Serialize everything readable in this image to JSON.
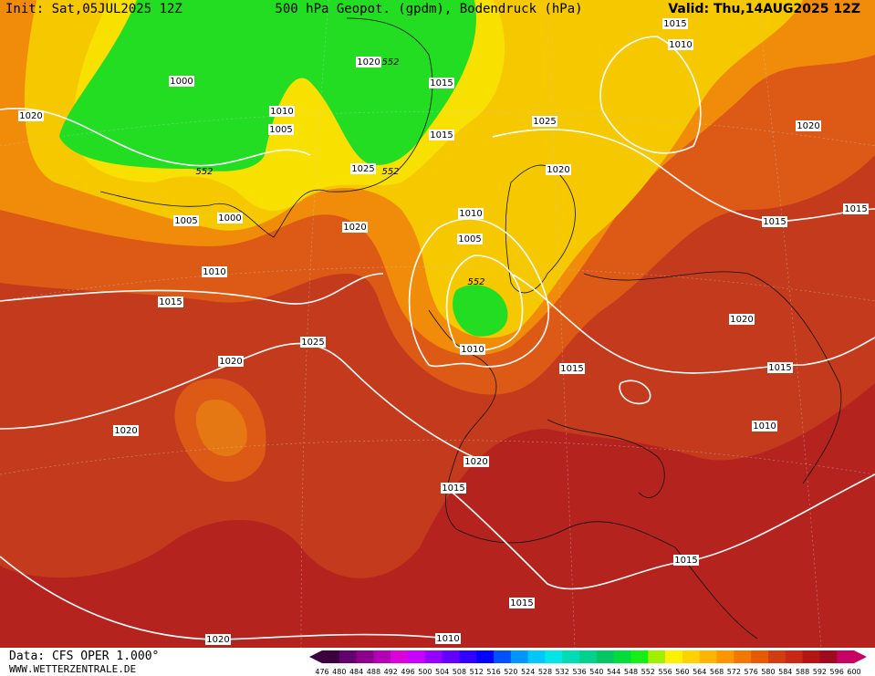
{
  "header": {
    "init": "Init: Sat,05JUL2025 12Z",
    "title": "500 hPa Geopot. (gpdm), Bodendruck (hPa)",
    "valid": "Valid: Thu,14AUG2025 12Z"
  },
  "isobar_labels": [
    1015,
    1010,
    1020,
    1000,
    1020,
    1015,
    1010,
    1005,
    1025,
    1015,
    1020,
    1025,
    1020,
    1005,
    1000,
    1020,
    1010,
    1015,
    1015,
    1005,
    1010,
    1015,
    1020,
    1025,
    1010,
    1020,
    1015,
    1015,
    1010,
    1020,
    1020,
    1015,
    1015,
    1015,
    1020,
    1010
  ],
  "geopotential_labels": [
    552,
    552,
    552,
    552
  ],
  "colorbar": {
    "labels": [
      476,
      480,
      484,
      488,
      492,
      496,
      500,
      504,
      508,
      512,
      516,
      520,
      524,
      528,
      532,
      536,
      540,
      544,
      548,
      552,
      556,
      560,
      564,
      568,
      572,
      576,
      580,
      584,
      588,
      592,
      596,
      600
    ],
    "colors": [
      "#3c003c",
      "#64006e",
      "#8c008c",
      "#b400b4",
      "#dc00dc",
      "#c800ff",
      "#9600ff",
      "#6400ff",
      "#3200ff",
      "#0000ff",
      "#0050ff",
      "#0096ff",
      "#00c8ff",
      "#00e6e6",
      "#00dcb4",
      "#00d28c",
      "#00c864",
      "#00dc3c",
      "#14f014",
      "#a0f000",
      "#fff000",
      "#ffd200",
      "#ffb400",
      "#ff9600",
      "#f07800",
      "#e65a00",
      "#d23c14",
      "#c82814",
      "#b41414",
      "#a00a1e",
      "#c80064"
    ]
  },
  "footer": {
    "data": "Data: CFS OPER 1.000°",
    "site": "WWW.WETTERZENTRALE.DE"
  }
}
